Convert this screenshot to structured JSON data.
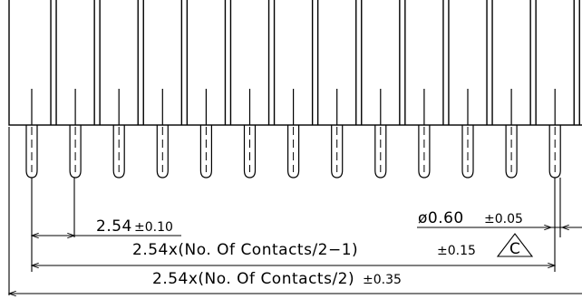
{
  "drawing": {
    "pin_count_visible": 13,
    "line_color": "#000000",
    "background_color": "#ffffff"
  },
  "dimensions": {
    "pitch": {
      "value": "2.54",
      "tolerance": "±0.10"
    },
    "span_minus_one": {
      "value": "2.54x(No. Of Contacts/2−1)",
      "tolerance": "±0.15"
    },
    "span_total": {
      "value": "2.54x(No. Of Contacts/2)",
      "tolerance": "±0.35"
    },
    "pin_diameter": {
      "value": "ø0.60",
      "tolerance": "±0.05"
    }
  },
  "callout": {
    "label": "C",
    "shape": "triangle"
  }
}
